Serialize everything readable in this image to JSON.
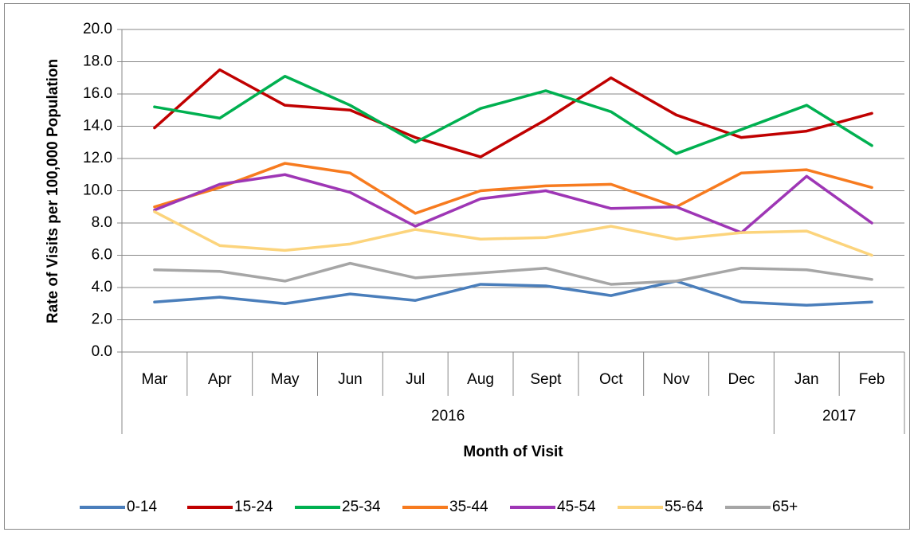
{
  "chart_data": {
    "type": "line",
    "y_label": "Rate of Visits per 100,000 Population",
    "x_label": "Month of Visit",
    "categories": [
      "Mar",
      "Apr",
      "May",
      "Jun",
      "Jul",
      "Aug",
      "Sept",
      "Oct",
      "Nov",
      "Dec",
      "Jan",
      "Feb"
    ],
    "category_groups": [
      {
        "name": "2016",
        "size": 10
      },
      {
        "name": "2017",
        "size": 2
      }
    ],
    "ylim": [
      0,
      20
    ],
    "yticks": [
      {
        "value": 0,
        "label": "0.0"
      },
      {
        "value": 2,
        "label": "2.0"
      },
      {
        "value": 4,
        "label": "4.0"
      },
      {
        "value": 6,
        "label": "6.0"
      },
      {
        "value": 8,
        "label": "8.0"
      },
      {
        "value": 10,
        "label": "10.0"
      },
      {
        "value": 12,
        "label": "12.0"
      },
      {
        "value": 14,
        "label": "14.0"
      },
      {
        "value": 16,
        "label": "16.0"
      },
      {
        "value": 18,
        "label": "18.0"
      },
      {
        "value": 20,
        "label": "20.0"
      }
    ],
    "grid": true,
    "legend": "bottom",
    "series": [
      {
        "name": "0-14",
        "color": "#4a7ebb",
        "values": [
          3.1,
          3.4,
          3.0,
          3.6,
          3.2,
          4.2,
          4.1,
          3.5,
          4.4,
          3.1,
          2.9,
          3.1
        ]
      },
      {
        "name": "15-24",
        "color": "#c00000",
        "values": [
          13.9,
          17.5,
          15.3,
          15.0,
          13.3,
          12.1,
          14.4,
          17.0,
          14.7,
          13.3,
          13.7,
          14.8
        ]
      },
      {
        "name": "25-34",
        "color": "#00b050",
        "values": [
          15.2,
          14.5,
          17.1,
          15.3,
          13.0,
          15.1,
          16.2,
          14.9,
          12.3,
          13.8,
          15.3,
          12.8
        ]
      },
      {
        "name": "35-44",
        "color": "#f77b1f",
        "values": [
          9.0,
          10.2,
          11.7,
          11.1,
          8.6,
          10.0,
          10.3,
          10.4,
          9.0,
          11.1,
          11.3,
          10.2
        ]
      },
      {
        "name": "45-54",
        "color": "#9e36b5",
        "values": [
          8.8,
          10.4,
          11.0,
          9.9,
          7.8,
          9.5,
          10.0,
          8.9,
          9.0,
          7.4,
          10.9,
          8.0
        ]
      },
      {
        "name": "55-64",
        "color": "#fcd47c",
        "values": [
          8.7,
          6.6,
          6.3,
          6.7,
          7.6,
          7.0,
          7.1,
          7.8,
          7.0,
          7.4,
          7.5,
          6.0
        ]
      },
      {
        "name": "65+",
        "color": "#a6a6a6",
        "values": [
          5.1,
          5.0,
          4.4,
          5.5,
          4.6,
          4.9,
          5.2,
          4.2,
          4.4,
          5.2,
          5.1,
          4.5
        ]
      }
    ]
  }
}
